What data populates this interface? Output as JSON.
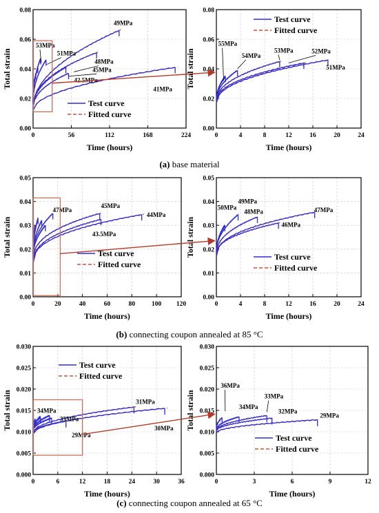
{
  "colors": {
    "test": "#2b2bd6",
    "fitted": "#c8503c",
    "box": "#c8705a",
    "arrow": "#b23a28"
  },
  "legend": {
    "test": "Test curve",
    "fitted": "Fitted curve"
  },
  "captions": [
    {
      "letter": "(a)",
      "text": " base material"
    },
    {
      "letter": "(b)",
      "text": " connecting coupon annealed at 85 °C"
    },
    {
      "letter": "(c)",
      "text": " connecting coupon annealed at 65 °C"
    }
  ],
  "chart_data": [
    {
      "id": "a-left",
      "type": "line",
      "xlabel": "Time (hours)",
      "ylabel": "Total strain",
      "xlim": [
        0,
        224
      ],
      "ylim": [
        0,
        0.08
      ],
      "xticks": [
        "0",
        "56",
        "112",
        "168",
        "224"
      ],
      "yticks": [
        "0.00",
        "0.02",
        "0.04",
        "0.06",
        "0.08"
      ],
      "grid": true,
      "legend_position": "bottom-right",
      "inset_box": {
        "x": [
          0,
          28
        ],
        "y": [
          0.011,
          0.059
        ]
      },
      "series": [
        {
          "name": "41MPa",
          "y0": 0.012,
          "x_end": 208,
          "y_end": 0.041,
          "exp": 0.5
        },
        {
          "name": "42.5MPa",
          "y0": 0.013,
          "x_end": 52,
          "y_end": 0.037,
          "exp": 0.45
        },
        {
          "name": "45MPa",
          "y0": 0.013,
          "x_end": 48,
          "y_end": 0.041,
          "exp": 0.45
        },
        {
          "name": "48MPa",
          "y0": 0.014,
          "x_end": 93,
          "y_end": 0.051,
          "exp": 0.45
        },
        {
          "name": "49MPa",
          "y0": 0.014,
          "x_end": 126,
          "y_end": 0.066,
          "exp": 0.5
        },
        {
          "name": "51MPa",
          "y0": 0.016,
          "x_end": 19,
          "y_end": 0.046,
          "exp": 0.45
        },
        {
          "name": "52MPa",
          "y0": 0.017,
          "x_end": 11,
          "y_end": 0.047,
          "exp": 0.45
        },
        {
          "name": "53MPa",
          "y0": 0.017,
          "x_end": 7,
          "y_end": 0.041,
          "exp": 0.45
        },
        {
          "name": "54MPa",
          "y0": 0.018,
          "x_end": 4,
          "y_end": 0.037,
          "exp": 0.45
        },
        {
          "name": "55MPa",
          "y0": 0.018,
          "x_end": 1,
          "y_end": 0.033,
          "exp": 0.5
        }
      ],
      "labels": [
        {
          "text": "49MPa",
          "x": 118,
          "y": 0.0695,
          "tx": 118,
          "ty": 0.0695
        },
        {
          "text": "53MPa",
          "x": 4,
          "y": 0.0545,
          "tx": 12,
          "ty": 0.044
        },
        {
          "text": "51MPa",
          "x": 35,
          "y": 0.049,
          "tx": 20,
          "ty": 0.043
        },
        {
          "text": "48MPa",
          "x": 90,
          "y": 0.0435,
          "tx": 60,
          "ty": 0.038
        },
        {
          "text": "45MPa",
          "x": 87,
          "y": 0.038,
          "tx": 52,
          "ty": 0.035
        },
        {
          "text": "42.5MPa",
          "x": 60,
          "y": 0.031,
          "tx": 60,
          "ty": 0.031
        },
        {
          "text": "41MPa",
          "x": 176,
          "y": 0.025,
          "tx": 176,
          "ty": 0.025
        }
      ]
    },
    {
      "id": "a-right",
      "type": "line",
      "xlabel": "Time (hours)",
      "ylabel": "Total strain",
      "xlim": [
        0,
        24
      ],
      "ylim": [
        0,
        0.08
      ],
      "xticks": [
        "0",
        "4",
        "8",
        "12",
        "16",
        "20",
        "24"
      ],
      "yticks": [
        "0.00",
        "0.02",
        "0.04",
        "0.06",
        "0.08"
      ],
      "grid": true,
      "legend_position": "top-right",
      "series": [
        {
          "name": "51MPa",
          "y0": 0.017,
          "x_end": 18.5,
          "y_end": 0.046,
          "exp": 0.45
        },
        {
          "name": "52MPa",
          "y0": 0.018,
          "x_end": 14.5,
          "y_end": 0.044,
          "exp": 0.45
        },
        {
          "name": "53MPa",
          "y0": 0.018,
          "x_end": 10.5,
          "y_end": 0.045,
          "exp": 0.45
        },
        {
          "name": "54MPa",
          "y0": 0.019,
          "x_end": 3.5,
          "y_end": 0.039,
          "exp": 0.5
        },
        {
          "name": "55MPa",
          "y0": 0.019,
          "x_end": 1.5,
          "y_end": 0.035,
          "exp": 0.5
        }
      ],
      "labels": [
        {
          "text": "55MPa",
          "x": 0.3,
          "y": 0.0555,
          "tx": 1.2,
          "ty": 0.032
        },
        {
          "text": "54MPa",
          "x": 4.2,
          "y": 0.0475,
          "tx": 3.5,
          "ty": 0.04
        },
        {
          "text": "53MPa",
          "x": 9.6,
          "y": 0.051,
          "tx": 10.5,
          "ty": 0.046
        },
        {
          "text": "52MPa",
          "x": 15.8,
          "y": 0.0505,
          "tx": 12,
          "ty": 0.044
        },
        {
          "text": "51MPa",
          "x": 18.2,
          "y": 0.0395,
          "tx": 18.2,
          "ty": 0.0395
        }
      ]
    },
    {
      "id": "b-left",
      "type": "line",
      "xlabel": "Time (hours)",
      "ylabel": "Total strain",
      "xlim": [
        0,
        120
      ],
      "ylim": [
        0,
        0.05
      ],
      "xticks": [
        "0",
        "20",
        "40",
        "60",
        "80",
        "100",
        "120"
      ],
      "yticks": [
        "0.00",
        "0.01",
        "0.02",
        "0.03",
        "0.04",
        "0.05"
      ],
      "grid": true,
      "legend_position": "bottom-right",
      "inset_box": {
        "x": [
          0,
          22
        ],
        "y": [
          0.0005,
          0.0415
        ]
      },
      "series": [
        {
          "name": "44MPa",
          "y0": 0.014,
          "x_end": 88,
          "y_end": 0.0345,
          "exp": 0.4
        },
        {
          "name": "43.5MPa",
          "y0": 0.014,
          "x_end": 55,
          "y_end": 0.0325,
          "exp": 0.4
        },
        {
          "name": "45MPa",
          "y0": 0.015,
          "x_end": 54,
          "y_end": 0.035,
          "exp": 0.4
        },
        {
          "name": "46MPa",
          "y0": 0.016,
          "x_end": 10,
          "y_end": 0.03,
          "exp": 0.45
        },
        {
          "name": "47MPa",
          "y0": 0.017,
          "x_end": 16,
          "y_end": 0.035,
          "exp": 0.45
        },
        {
          "name": "48MPa",
          "y0": 0.018,
          "x_end": 7,
          "y_end": 0.032,
          "exp": 0.5
        },
        {
          "name": "49MPa",
          "y0": 0.018,
          "x_end": 4,
          "y_end": 0.033,
          "exp": 0.5
        },
        {
          "name": "50MPa",
          "y0": 0.019,
          "x_end": 1.5,
          "y_end": 0.03,
          "exp": 0.5
        }
      ],
      "labels": [
        {
          "text": "47MPa",
          "x": 16,
          "y": 0.0355,
          "tx": 16,
          "ty": 0.0355
        },
        {
          "text": "45MPa",
          "x": 55,
          "y": 0.0373,
          "tx": 55,
          "ty": 0.0373
        },
        {
          "text": "44MPa",
          "x": 92,
          "y": 0.0335,
          "tx": 92,
          "ty": 0.0335
        },
        {
          "text": "43.5MPa",
          "x": 48,
          "y": 0.0255,
          "tx": 48,
          "ty": 0.0255
        }
      ]
    },
    {
      "id": "b-right",
      "type": "line",
      "xlabel": "Time (hours)",
      "ylabel": "Total strain",
      "xlim": [
        0,
        24
      ],
      "ylim": [
        0,
        0.05
      ],
      "xticks": [
        "0",
        "4",
        "8",
        "12",
        "16",
        "20",
        "24"
      ],
      "yticks": [
        "0.00",
        "0.01",
        "0.02",
        "0.03",
        "0.04",
        "0.05"
      ],
      "grid": true,
      "legend_position": "bottom-right",
      "series": [
        {
          "name": "47MPa",
          "y0": 0.017,
          "x_end": 16.3,
          "y_end": 0.0355,
          "exp": 0.42
        },
        {
          "name": "46MPa",
          "y0": 0.018,
          "x_end": 10.3,
          "y_end": 0.031,
          "exp": 0.45
        },
        {
          "name": "48MPa",
          "y0": 0.018,
          "x_end": 6.8,
          "y_end": 0.0335,
          "exp": 0.45
        },
        {
          "name": "49MPa",
          "y0": 0.019,
          "x_end": 3.6,
          "y_end": 0.0345,
          "exp": 0.5
        },
        {
          "name": "50MPa",
          "y0": 0.019,
          "x_end": 1.4,
          "y_end": 0.03,
          "exp": 0.5
        }
      ],
      "labels": [
        {
          "text": "50MPa",
          "x": 0.2,
          "y": 0.0365,
          "tx": 0.2,
          "ty": 0.0365
        },
        {
          "text": "49MPa",
          "x": 3.6,
          "y": 0.0392,
          "tx": 3.6,
          "ty": 0.0392
        },
        {
          "text": "48MPa",
          "x": 4.6,
          "y": 0.0348,
          "tx": 4.6,
          "ty": 0.0348
        },
        {
          "text": "47MPa",
          "x": 16.2,
          "y": 0.0355,
          "tx": 16.2,
          "ty": 0.0355
        },
        {
          "text": "46MPa",
          "x": 10.8,
          "y": 0.0293,
          "tx": 10.8,
          "ty": 0.0293
        }
      ]
    },
    {
      "id": "c-left",
      "type": "line",
      "xlabel": "Time (hours)",
      "ylabel": "Total strain",
      "xlim": [
        0,
        36
      ],
      "ylim": [
        0,
        0.03
      ],
      "xticks": [
        "0",
        "6",
        "12",
        "18",
        "24",
        "30",
        "36"
      ],
      "yticks": [
        "0.000",
        "0.005",
        "0.010",
        "0.015",
        "0.020",
        "0.025",
        "0.030"
      ],
      "grid": true,
      "legend_position": "top-center",
      "inset_box": {
        "x": [
          0,
          12
        ],
        "y": [
          0.0045,
          0.0175
        ]
      },
      "series": [
        {
          "name": "30MPa",
          "y0": 0.0095,
          "x_end": 32,
          "y_end": 0.0155,
          "exp": 0.5
        },
        {
          "name": "31MPa",
          "y0": 0.0098,
          "x_end": 24.5,
          "y_end": 0.0158,
          "exp": 0.5
        },
        {
          "name": "29MPa",
          "y0": 0.0098,
          "x_end": 8,
          "y_end": 0.0125,
          "exp": 0.5
        },
        {
          "name": "32MPa",
          "y0": 0.0102,
          "x_end": 4.5,
          "y_end": 0.0132,
          "exp": 0.5
        },
        {
          "name": "33MPa",
          "y0": 0.0103,
          "x_end": 4,
          "y_end": 0.0138,
          "exp": 0.5
        },
        {
          "name": "34MPa",
          "y0": 0.0105,
          "x_end": 1.8,
          "y_end": 0.0135,
          "exp": 0.5
        },
        {
          "name": "36MPa",
          "y0": 0.0108,
          "x_end": 0.5,
          "y_end": 0.013,
          "exp": 0.5
        }
      ],
      "labels": [
        {
          "text": "34MPa",
          "x": 1.0,
          "y": 0.0144,
          "tx": 1.0,
          "ty": 0.0144
        },
        {
          "text": "33MPa",
          "x": 6.5,
          "y": 0.0125,
          "tx": 6.5,
          "ty": 0.0125
        },
        {
          "text": "31MPa",
          "x": 25,
          "y": 0.0165,
          "tx": 25,
          "ty": 0.0165
        },
        {
          "text": "30MPa",
          "x": 29.5,
          "y": 0.0103,
          "tx": 29.5,
          "ty": 0.0103
        },
        {
          "text": "29MPa",
          "x": 9.4,
          "y": 0.0087,
          "tx": 9.4,
          "ty": 0.0087
        }
      ]
    },
    {
      "id": "c-right",
      "type": "line",
      "xlabel": "Time (hours)",
      "ylabel": "Total strain",
      "xlim": [
        0,
        12
      ],
      "ylim": [
        0,
        0.03
      ],
      "xticks": [
        "0",
        "3",
        "6",
        "9",
        "12"
      ],
      "yticks": [
        "0.000",
        "0.005",
        "0.010",
        "0.015",
        "0.020",
        "0.025",
        "0.030"
      ],
      "grid": true,
      "legend_position": "bottom-right",
      "series": [
        {
          "name": "29MPa",
          "y0": 0.0098,
          "x_end": 8,
          "y_end": 0.0128,
          "exp": 0.5
        },
        {
          "name": "32MPa",
          "y0": 0.0102,
          "x_end": 4.4,
          "y_end": 0.0132,
          "exp": 0.5
        },
        {
          "name": "33MPa",
          "y0": 0.0103,
          "x_end": 4,
          "y_end": 0.0138,
          "exp": 0.5
        },
        {
          "name": "34MPa",
          "y0": 0.0105,
          "x_end": 1.8,
          "y_end": 0.0135,
          "exp": 0.5
        },
        {
          "name": "36MPa",
          "y0": 0.0108,
          "x_end": 0.45,
          "y_end": 0.0133,
          "exp": 0.5
        }
      ],
      "labels": [
        {
          "text": "36MPa",
          "x": 0.35,
          "y": 0.0203,
          "tx": 0.7,
          "ty": 0.0148
        },
        {
          "text": "34MPa",
          "x": 1.8,
          "y": 0.0153,
          "tx": 1.8,
          "ty": 0.0153
        },
        {
          "text": "33MPa",
          "x": 3.8,
          "y": 0.0178,
          "tx": 4,
          "ty": 0.0146
        },
        {
          "text": "32MPa",
          "x": 4.9,
          "y": 0.0143,
          "tx": 4.9,
          "ty": 0.0143
        },
        {
          "text": "29MPa",
          "x": 8.2,
          "y": 0.0133,
          "tx": 8.2,
          "ty": 0.0133
        }
      ]
    }
  ]
}
